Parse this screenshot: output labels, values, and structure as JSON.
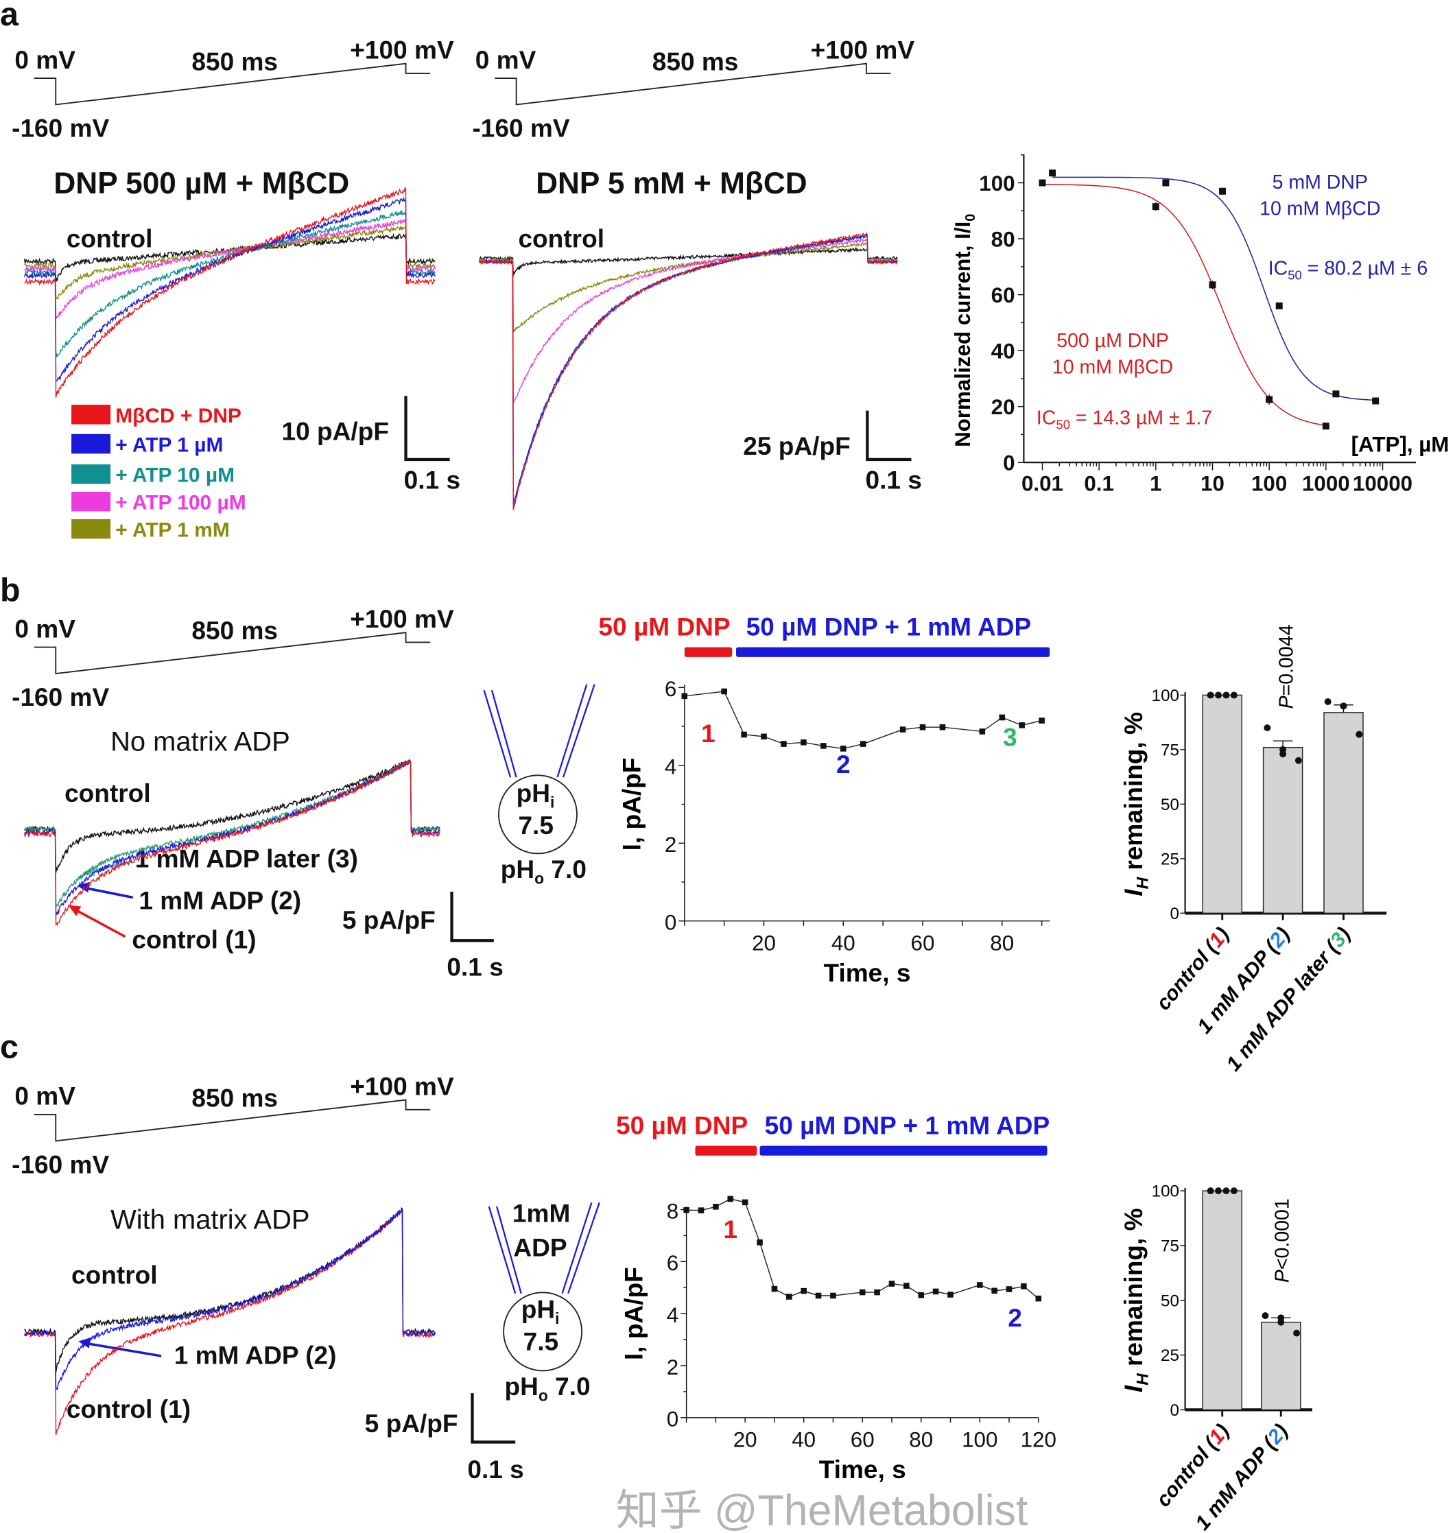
{
  "panels": {
    "a": "a",
    "b": "b",
    "c": "c"
  },
  "protocol": {
    "v_hold": "0 mV",
    "duration": "850 ms",
    "v_end": "+100 mV",
    "v_step": "-160 mV"
  },
  "panel_a": {
    "title_left": "DNP 500 µM + MβCD",
    "title_right": "DNP 5 mM + MβCD",
    "control_label": "control",
    "legend": [
      {
        "label": "MβCD + DNP",
        "color": "#e8161b"
      },
      {
        "label": "+ ATP 1 µM",
        "color": "#1a1adb"
      },
      {
        "label": "+ ATP 10 µM",
        "color": "#109090"
      },
      {
        "label": "+ ATP 100 µM",
        "color": "#ee3be0"
      },
      {
        "label": "+ ATP 1 mM",
        "color": "#8a8a10"
      }
    ],
    "scale_left": {
      "current": "10 pA/pF",
      "time": "0.1 s"
    },
    "scale_right": {
      "current": "25 pA/pF",
      "time": "0.1 s"
    }
  },
  "panel_b": {
    "condition": "No matrix ADP",
    "control_label": "control",
    "annotations": [
      "1 mM ADP later (3)",
      "1 mM ADP (2)",
      "control (1)"
    ],
    "scale": {
      "current": "5 pA/pF",
      "time": "0.1 s"
    },
    "cell": {
      "phi": "pH",
      "phi_sub": "i",
      "phi_val": "7.5",
      "pho": "pH",
      "pho_sub": "o",
      "pho_val": " 7.0"
    }
  },
  "panel_c": {
    "condition": "With matrix ADP",
    "control_label": "control",
    "annotations": [
      "1 mM ADP (2)",
      "control (1)"
    ],
    "scale": {
      "current": "5 pA/pF",
      "time": "0.1 s"
    },
    "cell": {
      "pipette_1": "1mM",
      "pipette_2": "ADP",
      "phi": "pH",
      "phi_sub": "i",
      "phi_val": "7.5",
      "pho": "pH",
      "pho_sub": "o",
      "pho_val": " 7.0"
    }
  },
  "watermark": "知乎 @TheMetabolist",
  "chart_data": [
    {
      "id": "atp_dose_response",
      "type": "scatter",
      "xlabel": "[ATP], µM",
      "ylabel": "Normalized current, I/I",
      "ylabel_sub": "0",
      "xscale": "log",
      "xlim": [
        0.01,
        10000
      ],
      "ylim": [
        0,
        110
      ],
      "xticks": [
        "0.01",
        "0.1",
        "1",
        "10",
        "100",
        "1000",
        "10000"
      ],
      "yticks": [
        "0",
        "20",
        "40",
        "60",
        "80",
        "100"
      ],
      "series": [
        {
          "name": "500 µM DNP",
          "name2": "10 mM MβCD",
          "color": "#d42020",
          "ic50_prefix": "IC",
          "ic50_sub": "50",
          "ic50_text": " = 14.3 µM ± 1.7",
          "fit": {
            "top": 99.5,
            "bottom": 12,
            "ic50": 14.3,
            "hill": 1.0
          },
          "x": [
            0.01,
            1,
            10,
            100,
            1000
          ],
          "y": [
            100,
            91.5,
            63.5,
            22.5,
            13
          ],
          "err": [
            1,
            1.5,
            1.5,
            1.8,
            0.8
          ]
        },
        {
          "name": "5 mM DNP",
          "name2": "10 mM MβCD",
          "color": "#2222aa",
          "ic50_prefix": "IC",
          "ic50_sub": "50",
          "ic50_text": " = 80.2 µM ± 6",
          "fit": {
            "top": 102,
            "bottom": 22,
            "ic50": 80.2,
            "hill": 1.25
          },
          "x": [
            0.015,
            1.5,
            15,
            150,
            1500,
            7500
          ],
          "y": [
            103.5,
            100,
            97,
            56,
            24.5,
            22
          ],
          "err": [
            0.8,
            0.8,
            1.2,
            0.8,
            0.8,
            0.8
          ]
        }
      ]
    },
    {
      "id": "timecourse_b",
      "type": "line",
      "xlabel": "Time, s",
      "ylabel": "I, pA/pF",
      "xlim": [
        0,
        92
      ],
      "ylim": [
        0,
        6
      ],
      "xticks": [
        "20",
        "40",
        "60",
        "80"
      ],
      "yticks": [
        "0",
        "2",
        "4",
        "6"
      ],
      "bars": [
        {
          "label": "50 µM DNP",
          "color": "#e8161b",
          "from": 0,
          "to": 12
        },
        {
          "label": "50 µM DNP + 1 mM ADP",
          "color": "#1a1adb",
          "from": 13,
          "to": 92
        }
      ],
      "markers": [
        {
          "text": "1",
          "color": "#e8161b",
          "t": 6,
          "v": 4.6
        },
        {
          "text": "2",
          "color": "#1a1adb",
          "t": 40,
          "v": 3.8
        },
        {
          "text": "3",
          "color": "#2db866",
          "t": 82,
          "v": 4.5
        }
      ],
      "t": [
        0,
        10,
        15,
        20,
        25,
        30,
        35,
        40,
        45,
        55,
        60,
        65,
        75,
        80,
        85,
        90
      ],
      "v": [
        5.78,
        5.9,
        4.79,
        4.74,
        4.55,
        4.59,
        4.5,
        4.43,
        4.55,
        4.92,
        4.98,
        4.98,
        4.87,
        5.23,
        5.03,
        5.15
      ]
    },
    {
      "id": "timecourse_c",
      "type": "line",
      "xlabel": "Time, s",
      "ylabel": "I, pA/pF",
      "xlim": [
        0,
        120
      ],
      "ylim": [
        0,
        8
      ],
      "xticks": [
        "20",
        "40",
        "60",
        "80",
        "100",
        "120"
      ],
      "yticks": [
        "0",
        "2",
        "4",
        "6",
        "8"
      ],
      "bars": [
        {
          "label": "50 µM DNP",
          "color": "#e8161b",
          "from": 3,
          "to": 24
        },
        {
          "label": "50 µM DNP + 1 mM ADP",
          "color": "#1a1adb",
          "from": 25,
          "to": 123
        }
      ],
      "markers": [
        {
          "text": "1",
          "color": "#e8161b",
          "t": 15,
          "v": 6.9
        },
        {
          "text": "2",
          "color": "#1a1adb",
          "t": 112,
          "v": 3.5
        }
      ],
      "t": [
        0,
        5,
        10,
        15,
        20,
        25,
        30,
        35,
        40,
        45,
        50,
        60,
        65,
        70,
        75,
        80,
        85,
        90,
        100,
        105,
        110,
        115,
        120
      ],
      "v": [
        7.98,
        7.97,
        8.11,
        8.41,
        8.28,
        6.74,
        4.95,
        4.65,
        4.87,
        4.69,
        4.69,
        4.82,
        4.82,
        5.15,
        5.07,
        4.71,
        4.85,
        4.73,
        5.1,
        4.88,
        4.94,
        5.05,
        4.58
      ]
    },
    {
      "id": "bars_b",
      "type": "bar",
      "ylabel_i": "I",
      "ylabel_sub": "H",
      "ylabel_rest": " remaining, %",
      "ylim": [
        0,
        100
      ],
      "yticks": [
        "0",
        "25",
        "50",
        "75",
        "100"
      ],
      "pvalue_italic": "P",
      "pvalue_text": "=0.0044",
      "categories": [
        {
          "pre": "control (",
          "num": "1",
          "post": ")",
          "num_color": "#e8161b"
        },
        {
          "pre": "1 mM ADP (",
          "num": "2",
          "post": ")",
          "num_color": "#1f7fe0"
        },
        {
          "pre": "1 mM ADP later (",
          "num": "3",
          "post": ")",
          "num_color": "#2db866"
        }
      ],
      "values": [
        100,
        76,
        92
      ],
      "sem": [
        0,
        3,
        3.5
      ],
      "points": [
        [
          100,
          100,
          100,
          100
        ],
        [
          85,
          75,
          73,
          70
        ],
        [
          97,
          95,
          95,
          82
        ]
      ]
    },
    {
      "id": "bars_c",
      "type": "bar",
      "ylabel_i": "I",
      "ylabel_sub": "H",
      "ylabel_rest": " remaining, %",
      "ylim": [
        0,
        100
      ],
      "yticks": [
        "0",
        "25",
        "50",
        "75",
        "100"
      ],
      "pvalue_italic": "P",
      "pvalue_text": "<0.0001",
      "categories": [
        {
          "pre": "control (",
          "num": "1",
          "post": ")",
          "num_color": "#e8161b"
        },
        {
          "pre": "1 mM ADP (",
          "num": "2",
          "post": ")",
          "num_color": "#1f7fe0"
        }
      ],
      "values": [
        100,
        40
      ],
      "sem": [
        0,
        2
      ],
      "points": [
        [
          100,
          100,
          100,
          100
        ],
        [
          43,
          42,
          40,
          35
        ]
      ]
    }
  ],
  "traces": {
    "a_left": [
      {
        "name": "control",
        "color": "#111111",
        "hold": -0.8,
        "start": -1.2,
        "end": 3.2,
        "amp": -3,
        "tau": 15
      },
      {
        "name": "+ ATP 1 mM",
        "color": "#8a8a10",
        "hold": -1.5,
        "start": -3,
        "end": 4.5,
        "amp": -4,
        "tau": 40
      },
      {
        "name": "+ ATP 100 µM",
        "color": "#ee3be0",
        "hold": -2,
        "start": -4,
        "end": 5.5,
        "amp": -6,
        "tau": 60
      },
      {
        "name": "+ ATP 10 µM",
        "color": "#109090",
        "hold": -2.5,
        "start": -6,
        "end": 7,
        "amp": -10,
        "tau": 120
      },
      {
        "name": "+ ATP 1 µM",
        "color": "#1a1adb",
        "hold": -3,
        "start": -8,
        "end": 9,
        "amp": -12,
        "tau": 140
      },
      {
        "name": "MβCD + DNP",
        "color": "#e8161b",
        "hold": -4,
        "start": -9,
        "end": 10.5,
        "amp": -13,
        "tau": 150
      }
    ],
    "a_right": [
      {
        "name": "control",
        "color": "#111111",
        "hold": -0.5,
        "start": -3,
        "end": 4,
        "amp": -6,
        "tau": 15
      },
      {
        "name": "+ ATP 1 mM",
        "color": "#8a8a10",
        "hold": -1.5,
        "start": -8,
        "end": 7,
        "amp": -30,
        "tau": 150
      },
      {
        "name": "+ ATP 100 µM",
        "color": "#ee3be0",
        "hold": -2,
        "start": -10,
        "end": 9,
        "amp": -65,
        "tau": 120
      },
      {
        "name": "+ ATP 10 µM",
        "color": "#109090",
        "hold": -2.5,
        "start": -12,
        "end": 11,
        "amp": -115,
        "tau": 130
      },
      {
        "name": "+ ATP 1 µM",
        "color": "#1a1adb",
        "hold": -2.5,
        "start": -12,
        "end": 11,
        "amp": -115,
        "tau": 128
      },
      {
        "name": "MβCD + DNP",
        "color": "#e8161b",
        "hold": -2.5,
        "start": -12,
        "end": 12,
        "amp": -117,
        "tau": 130
      }
    ],
    "b": [
      {
        "name": "control",
        "color": "#111111",
        "hold": 0,
        "start": -0.5,
        "end": 7,
        "amp": -4,
        "tau": 30
      },
      {
        "name": "1 mM ADP later (3)",
        "color": "#2a9a6a",
        "hold": 0,
        "start": -2,
        "end": 7,
        "amp": -6,
        "tau": 80
      },
      {
        "name": "1 mM ADP (2)",
        "color": "#1a1adb",
        "hold": -0.3,
        "start": -2.3,
        "end": 7,
        "amp": -6.5,
        "tau": 85
      },
      {
        "name": "control (1)",
        "color": "#e8161b",
        "hold": -0.5,
        "start": -2.5,
        "end": 7,
        "amp": -7.5,
        "tau": 90
      }
    ],
    "c": [
      {
        "name": "control",
        "color": "#111111",
        "hold": 0,
        "start": 1,
        "end": 12.5,
        "amp": -5,
        "tau": 30
      },
      {
        "name": "control (1)",
        "color": "#e8161b",
        "hold": -0.3,
        "start": 0.5,
        "end": 12.5,
        "amp": -11,
        "tau": 90
      },
      {
        "name": "1 mM ADP (2)",
        "color": "#1a1adb",
        "hold": -0.2,
        "start": 0.8,
        "end": 12.5,
        "amp": -7,
        "tau": 55
      }
    ]
  }
}
